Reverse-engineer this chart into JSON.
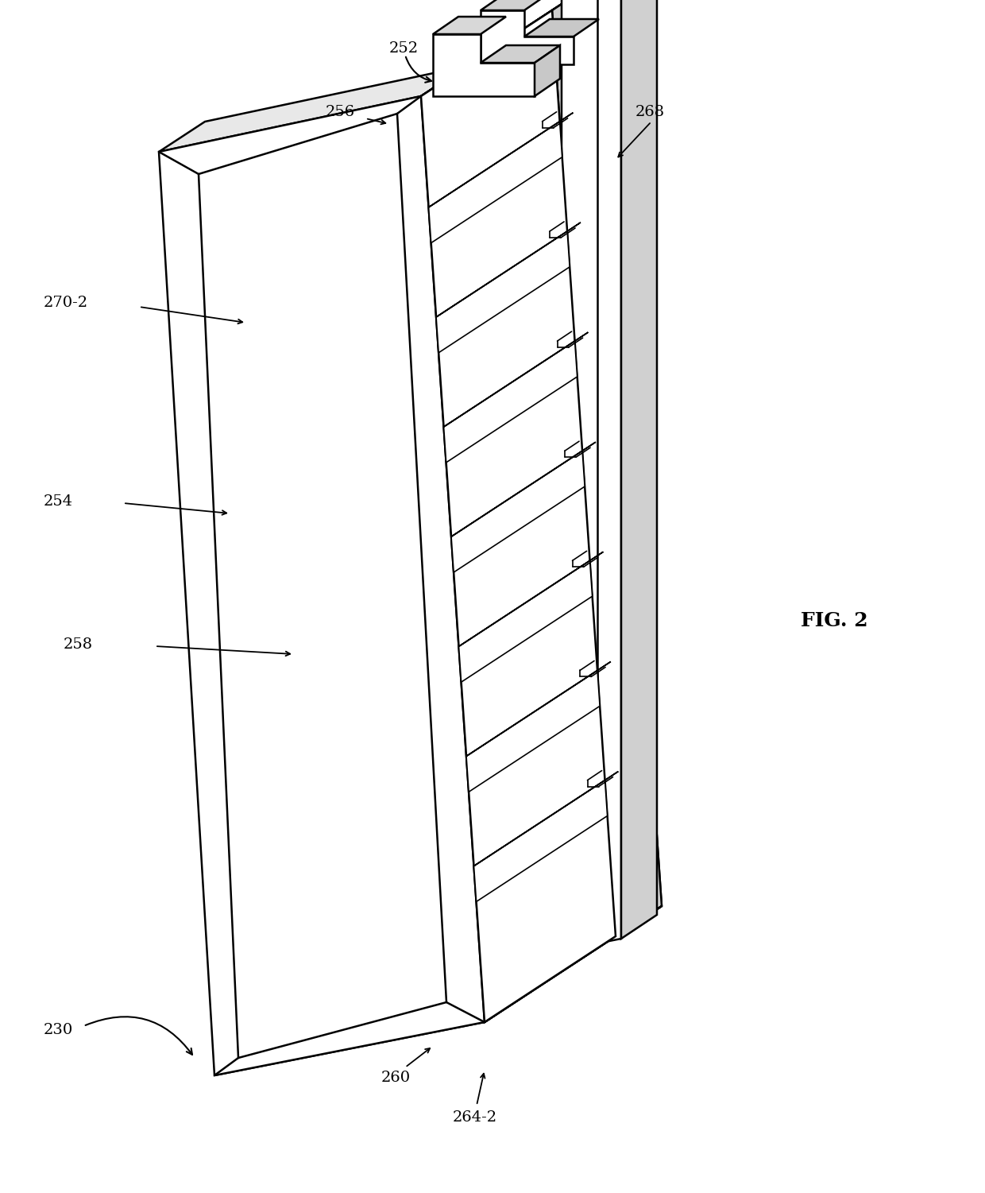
{
  "bg_color": "#ffffff",
  "line_color": "#000000",
  "lw_main": 1.8,
  "lw_thin": 1.2,
  "fig_width": 12.4,
  "fig_height": 15.01,
  "title": "FIG. 2",
  "label_fontsize": 14,
  "title_fontsize": 18
}
